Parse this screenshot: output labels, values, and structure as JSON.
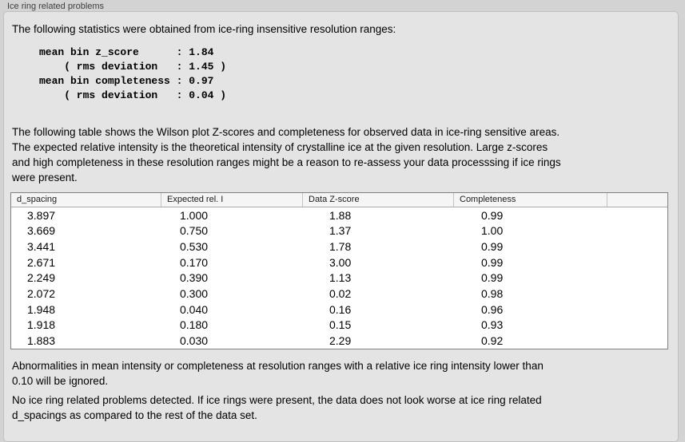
{
  "panel": {
    "title": "Ice ring related problems"
  },
  "sections": {
    "intro": "The following statistics were obtained from ice-ring insensitive resolution ranges:",
    "stats_block": "mean bin z_score      : 1.84\n    ( rms deviation   : 1.45 )\nmean bin completeness : 0.97\n    ( rms deviation   : 0.04 )",
    "table_description": "The following table shows the Wilson plot Z-scores and completeness for observed data in ice-ring sensitive areas.\nThe expected relative intensity is the theoretical intensity of crystalline ice at the given resolution. Large z-scores\nand high completeness in these resolution ranges might be a reason to re-assess your data processsing if ice rings\nwere present.",
    "ignore_note": "Abnormalities in mean intensity or completeness at resolution ranges with a relative ice ring intensity lower than\n0.10 will be ignored.",
    "conclusion": "No ice ring related problems detected. If ice rings were present, the data does not look worse at ice ring related\nd_spacings as compared to the rest of the data set."
  },
  "stats": {
    "mean_bin_z_score": "1.84",
    "z_score_rms_deviation": "1.45",
    "mean_bin_completeness": "0.97",
    "completeness_rms_deviation": "0.04"
  },
  "table": {
    "columns": [
      "d_spacing",
      "Expected rel. I",
      "Data Z-score",
      "Completeness"
    ],
    "rows": [
      [
        "3.897",
        "1.000",
        "1.88",
        "0.99"
      ],
      [
        "3.669",
        "0.750",
        "1.37",
        "1.00"
      ],
      [
        "3.441",
        "0.530",
        "1.78",
        "0.99"
      ],
      [
        "2.671",
        "0.170",
        "3.00",
        "0.99"
      ],
      [
        "2.249",
        "0.390",
        "1.13",
        "0.99"
      ],
      [
        "2.072",
        "0.300",
        "0.02",
        "0.98"
      ],
      [
        "1.948",
        "0.040",
        "0.16",
        "0.96"
      ],
      [
        "1.918",
        "0.180",
        "0.15",
        "0.93"
      ],
      [
        "1.883",
        "0.030",
        "2.29",
        "0.92"
      ]
    ]
  },
  "colors": {
    "window_background": "#d3d3d3",
    "groupbox_background": "#e4e4e4",
    "groupbox_border": "#c0c0c0",
    "table_background": "#ffffff",
    "table_border": "#808080",
    "table_header_background": "#f5f5f5",
    "text": "#000000",
    "title_text": "#3e3e3e"
  }
}
